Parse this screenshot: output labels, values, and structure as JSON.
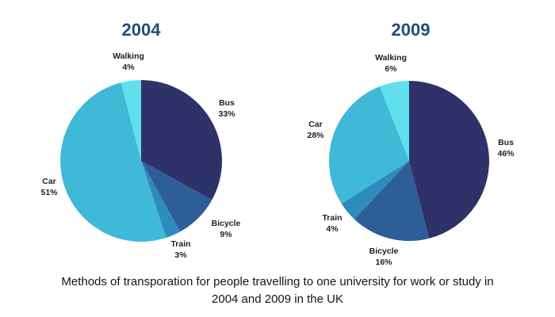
{
  "chart_data": [
    {
      "type": "pie",
      "title": "2004",
      "start_angle_deg": 0,
      "direction": "clockwise",
      "slices": [
        {
          "name": "Bus",
          "value": 33,
          "pct_label": "33%",
          "color": "#2e3269"
        },
        {
          "name": "Bicycle",
          "value": 9,
          "pct_label": "9%",
          "color": "#2e5e98"
        },
        {
          "name": "Train",
          "value": 3,
          "pct_label": "3%",
          "color": "#2d8cbd"
        },
        {
          "name": "Car",
          "value": 51,
          "pct_label": "51%",
          "color": "#40b8d8"
        },
        {
          "name": "Walking",
          "value": 4,
          "pct_label": "4%",
          "color": "#5fe0ec"
        }
      ]
    },
    {
      "type": "pie",
      "title": "2009",
      "start_angle_deg": 0,
      "direction": "clockwise",
      "slices": [
        {
          "name": "Bus",
          "value": 46,
          "pct_label": "46%",
          "color": "#2e3269"
        },
        {
          "name": "Bicycle",
          "value": 16,
          "pct_label": "16%",
          "color": "#2e5e98"
        },
        {
          "name": "Train",
          "value": 4,
          "pct_label": "4%",
          "color": "#2d8cbd"
        },
        {
          "name": "Car",
          "value": 28,
          "pct_label": "28%",
          "color": "#40b8d8"
        },
        {
          "name": "Walking",
          "value": 6,
          "pct_label": "6%",
          "color": "#5fe0ec"
        }
      ]
    }
  ],
  "caption_line1": "Methods of transporation for people travelling to one university for work or study in",
  "caption_line2": "2004 and 2009 in the UK"
}
